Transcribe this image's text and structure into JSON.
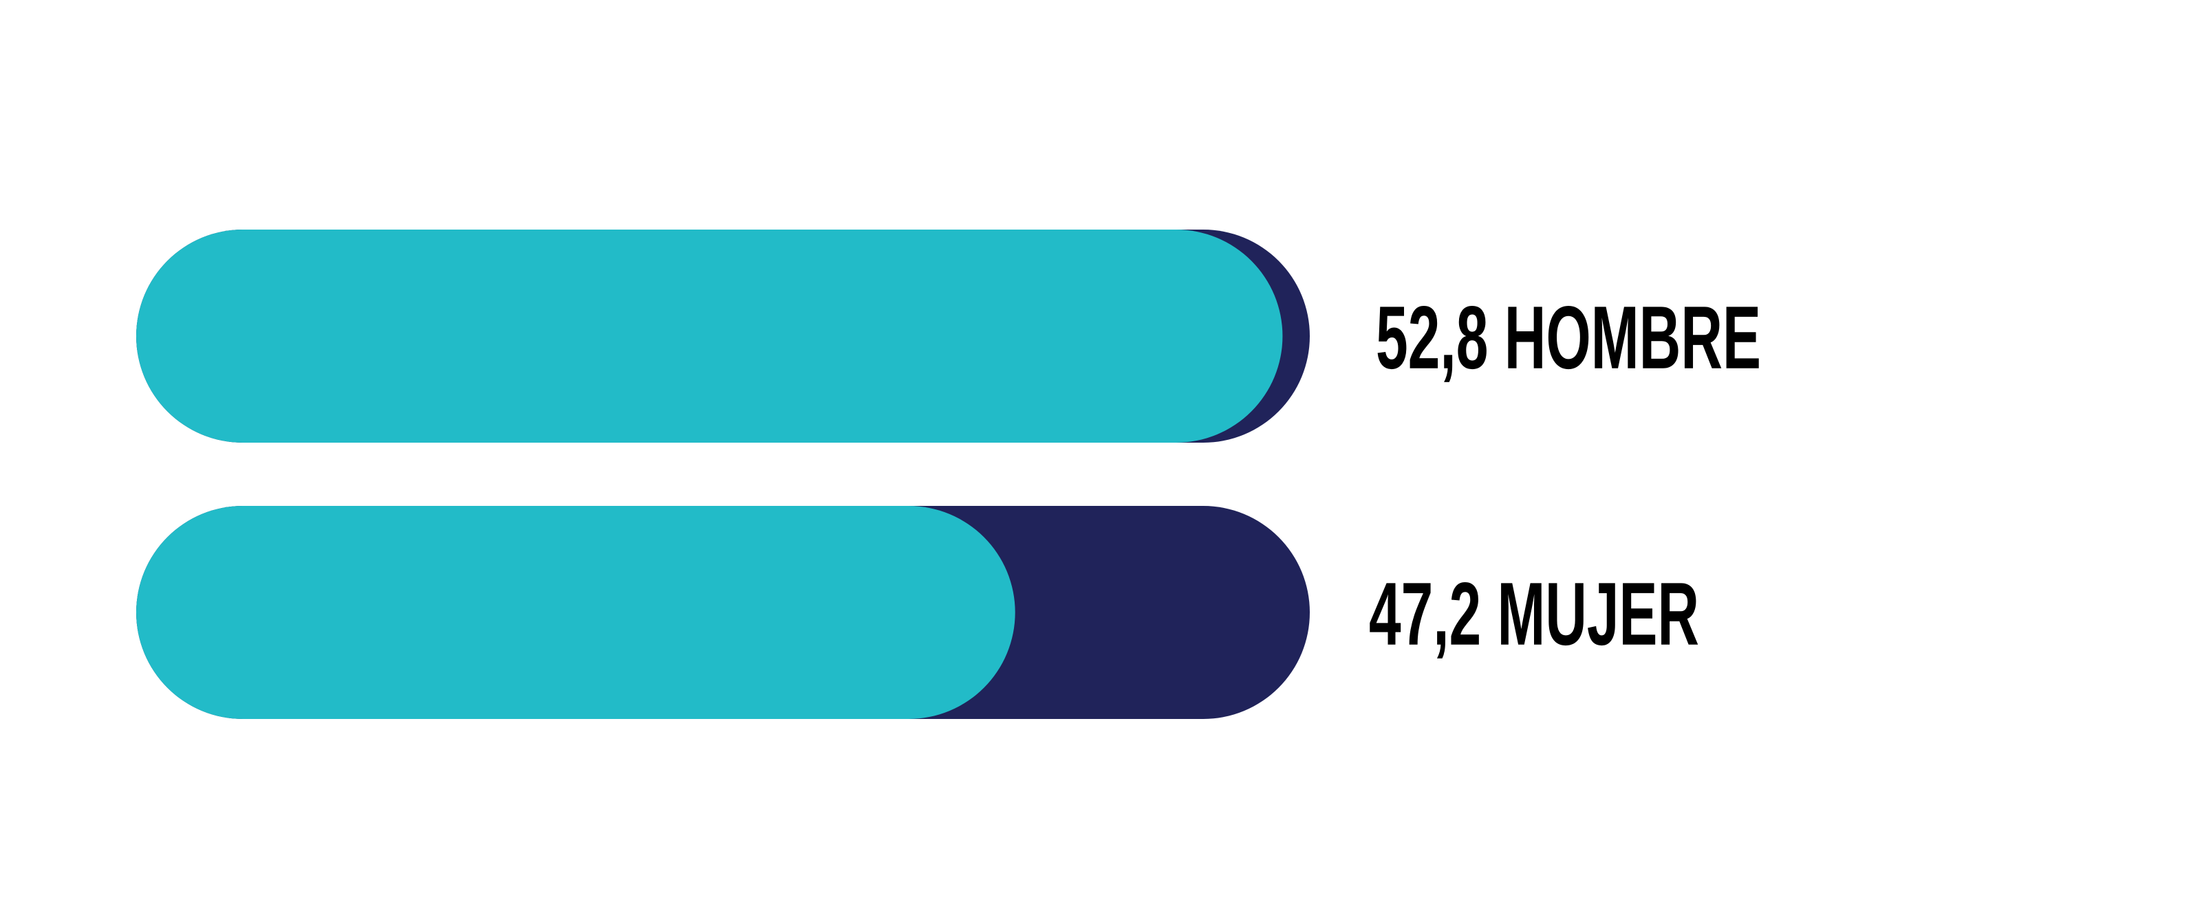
{
  "chart_data": {
    "type": "bar",
    "orientation": "horizontal",
    "categories": [
      "HOMBRE",
      "MUJER"
    ],
    "values": [
      52.8,
      47.2
    ],
    "value_labels": [
      "52,8",
      "47,2"
    ],
    "xlim": [
      0,
      100
    ],
    "title": "",
    "xlabel": "",
    "ylabel": "",
    "grid": false,
    "legend": "none",
    "colors": {
      "fill": "#22bbc8",
      "track": "#20235a",
      "text": "#000000"
    }
  }
}
